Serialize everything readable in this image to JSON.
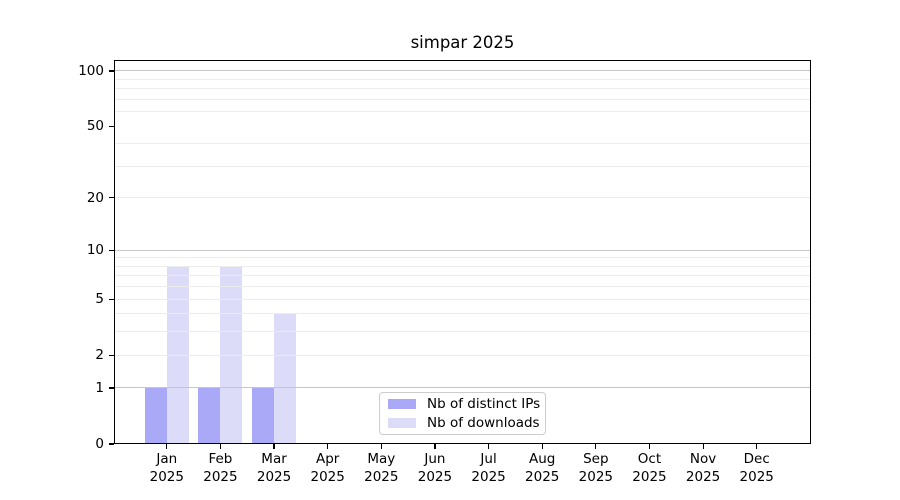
{
  "chart_data": {
    "type": "bar",
    "title": "simpar 2025",
    "year": "2025",
    "categories": [
      "Jan",
      "Feb",
      "Mar",
      "Apr",
      "May",
      "Jun",
      "Jul",
      "Aug",
      "Sep",
      "Oct",
      "Nov",
      "Dec"
    ],
    "series": [
      {
        "name": "Nb of distinct IPs",
        "color": "#a9a9f8",
        "values": [
          1,
          1,
          1,
          0,
          0,
          0,
          0,
          0,
          0,
          0,
          0,
          0
        ]
      },
      {
        "name": "Nb of downloads",
        "color": "#dcdcf9",
        "values": [
          8,
          8,
          4,
          0,
          0,
          0,
          0,
          0,
          0,
          0,
          0,
          0
        ]
      }
    ],
    "y_axis": {
      "scale": "log10(1+value)",
      "ticks": [
        0,
        1,
        2,
        5,
        10,
        20,
        50,
        100
      ],
      "ylim": [
        0,
        114.6
      ],
      "major_gridlines": [
        1,
        10,
        100
      ],
      "minor_gridlines": [
        2,
        3,
        4,
        5,
        6,
        7,
        8,
        9,
        20,
        30,
        40,
        60,
        70,
        80,
        90
      ]
    },
    "x_axis": {
      "tick_label_format": "month newline year"
    },
    "legend": {
      "position": "inside-bottom-center"
    },
    "colors": {
      "major_grid": "#c6c6c6",
      "minor_grid": "#ececec",
      "axis": "#000000",
      "background": "#ffffff"
    },
    "grid": "on"
  }
}
